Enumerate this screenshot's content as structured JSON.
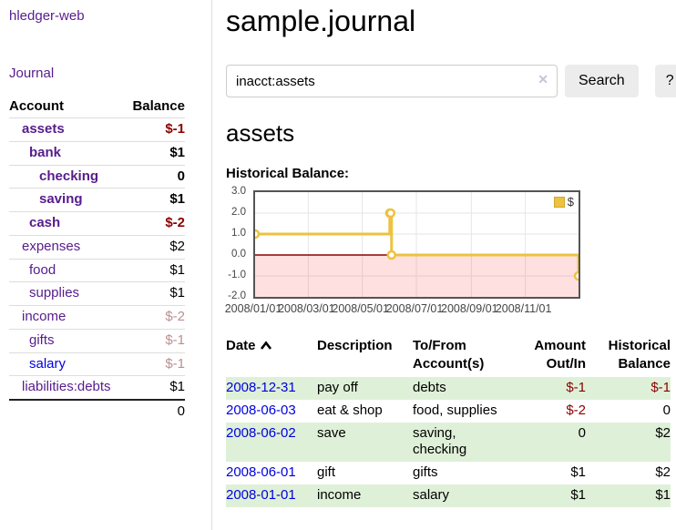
{
  "app": {
    "name": "hledger-web"
  },
  "sidebar": {
    "journal_label": "Journal",
    "accounts_table": {
      "headers": {
        "account": "Account",
        "balance": "Balance"
      },
      "rows": [
        {
          "name": "assets",
          "balance": "$-1"
        },
        {
          "name": "bank",
          "balance": "$1"
        },
        {
          "name": "checking",
          "balance": "0"
        },
        {
          "name": "saving",
          "balance": "$1"
        },
        {
          "name": "cash",
          "balance": "$-2"
        },
        {
          "name": "expenses",
          "balance": "$2"
        },
        {
          "name": "food",
          "balance": "$1"
        },
        {
          "name": "supplies",
          "balance": "$1"
        },
        {
          "name": "income",
          "balance": "$-2"
        },
        {
          "name": "gifts",
          "balance": "$-1"
        },
        {
          "name": "salary",
          "balance": "$-1"
        },
        {
          "name": "liabilities:debts",
          "balance": "$1"
        }
      ],
      "total": "0"
    }
  },
  "main": {
    "title": "sample.journal",
    "search": {
      "value": "inacct:assets",
      "clear_icon": "✕",
      "search_button": "Search",
      "help_button": "?"
    },
    "account_heading": "assets"
  },
  "chart_data": {
    "type": "line",
    "title": "Historical Balance:",
    "series": [
      {
        "name": "$",
        "color": "#edc240",
        "step": true,
        "points": [
          {
            "date": "2008/01/01",
            "value": 1
          },
          {
            "date": "2008/06/01",
            "value": 2
          },
          {
            "date": "2008/06/02",
            "value": 2
          },
          {
            "date": "2008/06/03",
            "value": 0
          },
          {
            "date": "2008/12/31",
            "value": -1
          }
        ]
      }
    ],
    "x_range": [
      "2008/01/01",
      "2008/12/31"
    ],
    "ylim": [
      -2,
      3
    ],
    "y_ticks": [
      "3.0",
      "2.0",
      "1.0",
      "0.0",
      "-1.0",
      "-2.0"
    ],
    "x_ticks": [
      "2008/01/01",
      "2008/03/01",
      "2008/05/01",
      "2008/07/01",
      "2008/09/01",
      "2008/11/01"
    ],
    "zero_line_color": "#8b0000",
    "negative_region_fill": "rgba(255,0,0,0.12)",
    "grid": true,
    "legend": "$",
    "legend_position": "top-right"
  },
  "register_table": {
    "headers": {
      "date": "Date",
      "description": "Description",
      "accounts": "To/From\nAccount(s)",
      "amount": "Amount\nOut/In",
      "balance": "Historical\nBalance"
    },
    "sort": {
      "column": "date",
      "icon": "chevron-up"
    },
    "rows": [
      {
        "date": "2008-12-31",
        "description": "pay off",
        "accounts": "debts",
        "amount": "$-1",
        "balance": "$-1"
      },
      {
        "date": "2008-06-03",
        "description": "eat & shop",
        "accounts": "food, supplies",
        "amount": "$-2",
        "balance": "0"
      },
      {
        "date": "2008-06-02",
        "description": "save",
        "accounts": "saving,\nchecking",
        "amount": "0",
        "balance": "$2"
      },
      {
        "date": "2008-06-01",
        "description": "gift",
        "accounts": "gifts",
        "amount": "$1",
        "balance": "$2"
      },
      {
        "date": "2008-01-01",
        "description": "income",
        "accounts": "salary",
        "amount": "$1",
        "balance": "$1"
      }
    ]
  }
}
